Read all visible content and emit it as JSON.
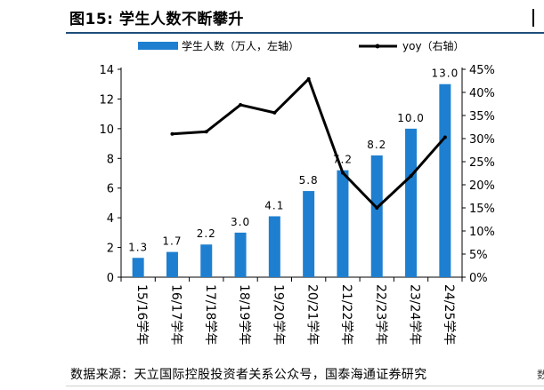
{
  "figure": {
    "title": "图15:  学生人数不断攀升",
    "source": "数据来源：天立国际控股投资者关系公众号，国泰海通证券研究",
    "edge_text": "数"
  },
  "chart_data": {
    "type": "bar",
    "title": "学生人数不断攀升",
    "categories": [
      "15/16学年",
      "16/17学年",
      "17/18学年",
      "18/19学年",
      "19/20学年",
      "20/21学年",
      "21/22学年",
      "22/23学年",
      "23/24学年",
      "24/25学年"
    ],
    "series": [
      {
        "name": "学生人数（万人，左轴）",
        "type": "bar",
        "axis": "left",
        "color": "#1e7fd0",
        "values": [
          1.3,
          1.7,
          2.2,
          3.0,
          4.1,
          5.8,
          7.2,
          8.2,
          10.0,
          13.0
        ],
        "labels": [
          "1.3",
          "1.7",
          "2.2",
          "3.0",
          "4.1",
          "5.8",
          "7.2",
          "8.2",
          "10.0",
          "13.0"
        ]
      },
      {
        "name": "yoy（右轴）",
        "type": "line",
        "axis": "right",
        "color": "#000000",
        "values": [
          null,
          0.31,
          0.315,
          0.373,
          0.356,
          0.429,
          0.226,
          0.15,
          0.219,
          0.303
        ]
      }
    ],
    "left_axis": {
      "min": 0,
      "max": 14,
      "ticks": [
        0,
        2,
        4,
        6,
        8,
        10,
        12,
        14
      ]
    },
    "right_axis": {
      "min": 0,
      "max": 0.45,
      "ticks": [
        "0%",
        "5%",
        "10%",
        "15%",
        "20%",
        "25%",
        "30%",
        "35%",
        "40%",
        "45%"
      ]
    },
    "legend_position": "top"
  }
}
